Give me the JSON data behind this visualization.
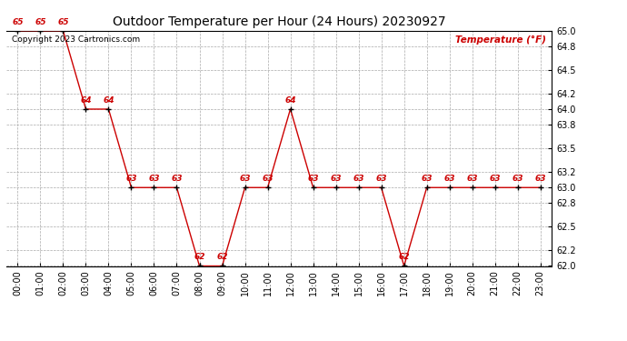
{
  "title": "Outdoor Temperature per Hour (24 Hours) 20230927",
  "ylabel": "Temperature (°F)",
  "copyright_text": "Copyright 2023 Cartronics.com",
  "hours": [
    0,
    1,
    2,
    3,
    4,
    5,
    6,
    7,
    8,
    9,
    10,
    11,
    12,
    13,
    14,
    15,
    16,
    17,
    18,
    19,
    20,
    21,
    22,
    23
  ],
  "temps": [
    65,
    65,
    65,
    64,
    64,
    63,
    63,
    63,
    62,
    62,
    63,
    63,
    64,
    63,
    63,
    63,
    63,
    62,
    63,
    63,
    63,
    63,
    63,
    63
  ],
  "ylim": [
    62.0,
    65.0
  ],
  "yticks": [
    62.0,
    62.2,
    62.5,
    62.8,
    63.0,
    63.2,
    63.5,
    63.8,
    64.0,
    64.2,
    64.5,
    64.8,
    65.0
  ],
  "line_color": "#cc0000",
  "marker_color": "#000000",
  "label_color": "#cc0000",
  "ylabel_color": "#cc0000",
  "title_color": "#000000",
  "bg_color": "#ffffff",
  "grid_color": "#aaaaaa",
  "title_fontsize": 10,
  "label_fontsize": 6.5,
  "tick_fontsize": 7,
  "copyright_fontsize": 6.5
}
